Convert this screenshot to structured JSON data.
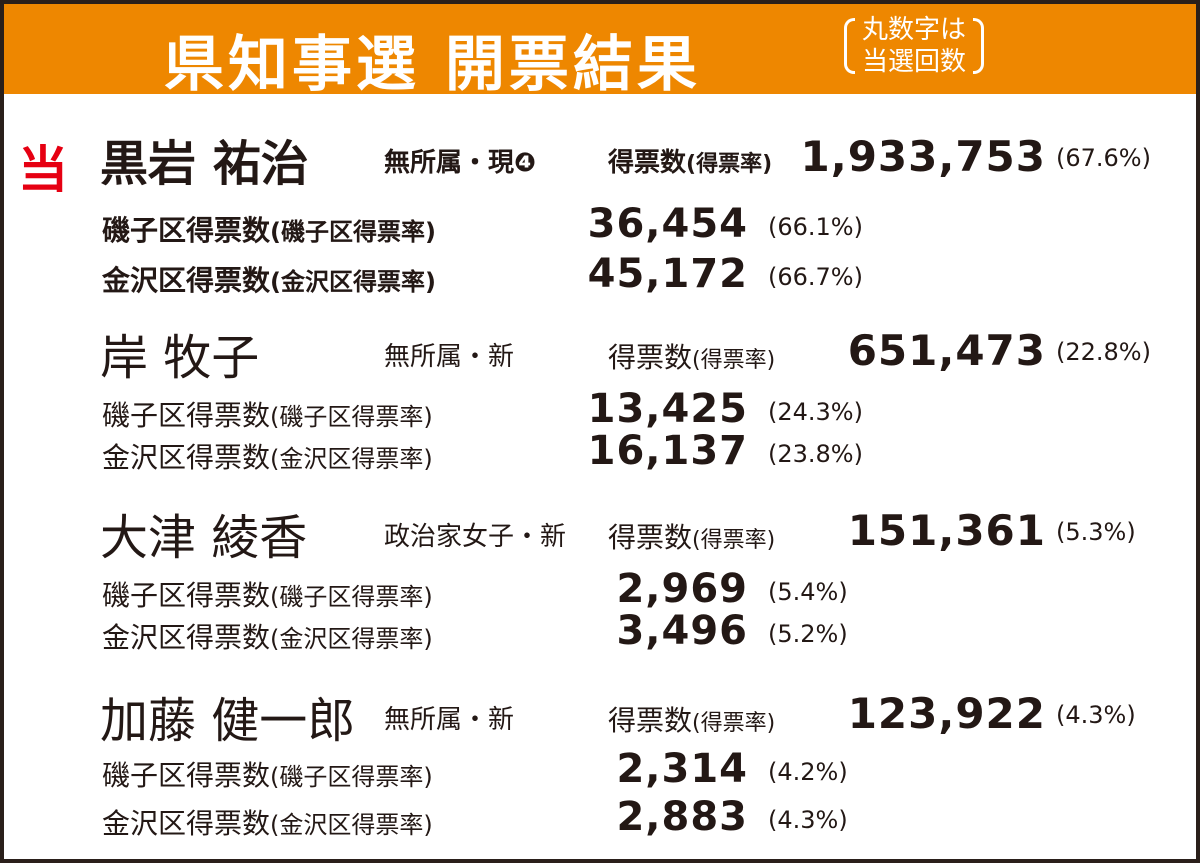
{
  "header": {
    "title": "県知事選 開票結果",
    "note_line1": "丸数字は",
    "note_line2": "当選回数"
  },
  "colors": {
    "header_bg": "#ee8700",
    "elected_mark": "#e60012",
    "border": "#2a1f1a"
  },
  "vote_label": "得票数",
  "vote_rate_label": "(得票率)",
  "candidates": [
    {
      "elected_mark": "当",
      "name": "黒岩 祐治",
      "party": "無所属・現❹",
      "votes": "1,933,753",
      "rate": "(67.6%)",
      "districts": [
        {
          "label": "磯子区得票数",
          "rate_label": "(磯子区得票率)",
          "votes": "36,454",
          "rate": "(66.1%)"
        },
        {
          "label": "金沢区得票数",
          "rate_label": "(金沢区得票率)",
          "votes": "45,172",
          "rate": "(66.7%)"
        }
      ]
    },
    {
      "name": "岸 牧子",
      "party": "無所属・新",
      "votes": "651,473",
      "rate": "(22.8%)",
      "districts": [
        {
          "label": "磯子区得票数",
          "rate_label": "(磯子区得票率)",
          "votes": "13,425",
          "rate": "(24.3%)"
        },
        {
          "label": "金沢区得票数",
          "rate_label": "(金沢区得票率)",
          "votes": "16,137",
          "rate": "(23.8%)"
        }
      ]
    },
    {
      "name": "大津 綾香",
      "party": "政治家女子・新",
      "votes": "151,361",
      "rate": "(5.3%)",
      "districts": [
        {
          "label": "磯子区得票数",
          "rate_label": "(磯子区得票率)",
          "votes": "2,969",
          "rate": "(5.4%)"
        },
        {
          "label": "金沢区得票数",
          "rate_label": "(金沢区得票率)",
          "votes": "3,496",
          "rate": "(5.2%)"
        }
      ]
    },
    {
      "name": "加藤 健一郎",
      "party": "無所属・新",
      "votes": "123,922",
      "rate": "(4.3%)",
      "districts": [
        {
          "label": "磯子区得票数",
          "rate_label": "(磯子区得票率)",
          "votes": "2,314",
          "rate": "(4.2%)"
        },
        {
          "label": "金沢区得票数",
          "rate_label": "(金沢区得票率)",
          "votes": "2,883",
          "rate": "(4.3%)"
        }
      ]
    }
  ]
}
